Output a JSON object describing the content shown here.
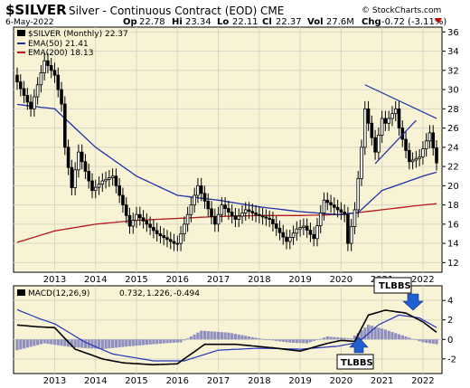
{
  "header": {
    "symbol": "$SILVER",
    "description": "Silver - Continuous Contract (EOD)",
    "exchange": "CME",
    "copyright": "© StockCharts.com",
    "date": "6-May-2022",
    "op_label": "Op",
    "op": "22.78",
    "hi_label": "Hi",
    "hi": "23.34",
    "lo_label": "Lo",
    "lo": "22.11",
    "cl_label": "Cl",
    "cl": "22.37",
    "vol_label": "Vol",
    "vol": "27.6M",
    "chg_label": "Chg",
    "chg": "-0.72 (-3.11%)",
    "chg_color": "#cc0000"
  },
  "legend": {
    "price": "$SILVER (Monthly) 22.37",
    "ema50": "EMA(50) 21.41",
    "ema200": "EMA(200) 18.13"
  },
  "macd": {
    "label_prefix": "MACD(12,26,9)",
    "v1": "0.732,",
    "v2": "1.226,",
    "v3": "-0.494"
  },
  "colors": {
    "panel_bg": "#f7f3d4",
    "ema50": "#1f2fa6",
    "ema200": "#b3191c",
    "trendline": "#1f2fa6",
    "candle": "#000000",
    "histogram": "#8f8fc0",
    "macd_line": "#000000",
    "signal_line": "#2233bb",
    "arrow": "#1f5fcf"
  },
  "callouts": {
    "top": "TLBBS",
    "bottom": "TLBBS"
  },
  "chart_data": [
    {
      "type": "candlestick",
      "title": "$SILVER Silver - Continuous Contract (EOD) CME",
      "period": "Monthly",
      "ylim": [
        11,
        36.5
      ],
      "y_ticks": [
        12,
        14,
        16,
        18,
        20,
        22,
        24,
        26,
        28,
        30,
        32,
        34,
        36
      ],
      "x_ticks": [
        "2013",
        "2014",
        "2015",
        "2016",
        "2017",
        "2018",
        "2019",
        "2020",
        "2021",
        "2022"
      ],
      "series": [
        {
          "name": "$SILVER (Monthly)",
          "anchors": [
            [
              "2012-01",
              31.5
            ],
            [
              "2012-06",
              28.0
            ],
            [
              "2012-10",
              33.0
            ],
            [
              "2013-01",
              31.5
            ],
            [
              "2013-03",
              28.5
            ],
            [
              "2013-04",
              24.0
            ],
            [
              "2013-06",
              19.8
            ],
            [
              "2013-08",
              23.5
            ],
            [
              "2013-12",
              19.5
            ],
            [
              "2014-03",
              20.5
            ],
            [
              "2014-06",
              21.0
            ],
            [
              "2014-09",
              18.0
            ],
            [
              "2014-11",
              15.8
            ],
            [
              "2015-01",
              17.0
            ],
            [
              "2015-07",
              15.0
            ],
            [
              "2015-12",
              14.0
            ],
            [
              "2016-01",
              14.0
            ],
            [
              "2016-07",
              20.0
            ],
            [
              "2016-12",
              16.0
            ],
            [
              "2017-02",
              18.0
            ],
            [
              "2017-06",
              16.5
            ],
            [
              "2017-09",
              17.5
            ],
            [
              "2017-12",
              17.0
            ],
            [
              "2018-04",
              16.5
            ],
            [
              "2018-09",
              14.2
            ],
            [
              "2018-12",
              15.5
            ],
            [
              "2019-02",
              15.8
            ],
            [
              "2019-05",
              14.5
            ],
            [
              "2019-08",
              18.5
            ],
            [
              "2019-12",
              17.5
            ],
            [
              "2020-02",
              17.0
            ],
            [
              "2020-03",
              14.0
            ],
            [
              "2020-05",
              17.5
            ],
            [
              "2020-07",
              24.0
            ],
            [
              "2020-08",
              28.0
            ],
            [
              "2020-11",
              23.5
            ],
            [
              "2021-01",
              27.0
            ],
            [
              "2021-02",
              26.5
            ],
            [
              "2021-05",
              28.0
            ],
            [
              "2021-06",
              26.0
            ],
            [
              "2021-09",
              22.5
            ],
            [
              "2021-12",
              23.0
            ],
            [
              "2022-03",
              25.5
            ],
            [
              "2022-05",
              22.37
            ]
          ]
        },
        {
          "name": "EMA(50)",
          "anchors": [
            [
              "2012-01",
              28.5
            ],
            [
              "2013-01",
              28.0
            ],
            [
              "2014-01",
              24.0
            ],
            [
              "2015-01",
              21.0
            ],
            [
              "2016-01",
              19.0
            ],
            [
              "2017-01",
              18.5
            ],
            [
              "2018-01",
              17.8
            ],
            [
              "2019-01",
              17.3
            ],
            [
              "2019-12",
              17.0
            ],
            [
              "2020-06",
              17.2
            ],
            [
              "2021-01",
              19.5
            ],
            [
              "2022-01",
              21.0
            ],
            [
              "2022-05",
              21.41
            ]
          ]
        },
        {
          "name": "EMA(200)",
          "anchors": [
            [
              "2012-01",
              14.0
            ],
            [
              "2013-01",
              15.3
            ],
            [
              "2014-01",
              16.0
            ],
            [
              "2015-01",
              16.4
            ],
            [
              "2016-01",
              16.6
            ],
            [
              "2017-01",
              16.8
            ],
            [
              "2018-01",
              16.9
            ],
            [
              "2019-01",
              16.9
            ],
            [
              "2020-01",
              17.0
            ],
            [
              "2021-01",
              17.5
            ],
            [
              "2022-01",
              18.0
            ],
            [
              "2022-05",
              18.13
            ]
          ]
        }
      ],
      "trendlines": [
        {
          "from": [
            "2020-08",
            30.5
          ],
          "to": [
            "2022-05",
            27.0
          ]
        },
        {
          "from": [
            "2020-11",
            22.3
          ],
          "to": [
            "2021-11",
            26.8
          ]
        }
      ]
    },
    {
      "type": "macd",
      "title": "MACD(12,26,9) 0.732, 1.226, -0.494",
      "ylim": [
        -3.5,
        5.5
      ],
      "y_ticks": [
        -2,
        0,
        2,
        4
      ],
      "x_ticks": [
        "2013",
        "2014",
        "2015",
        "2016",
        "2017",
        "2018",
        "2019",
        "2020",
        "2021",
        "2022"
      ],
      "series": [
        {
          "name": "MACD",
          "anchors": [
            [
              "2012-01",
              1.5
            ],
            [
              "2012-08",
              1.3
            ],
            [
              "2013-01",
              1.2
            ],
            [
              "2013-07",
              -1.0
            ],
            [
              "2014-03",
              -2.0
            ],
            [
              "2014-09",
              -2.4
            ],
            [
              "2015-06",
              -2.6
            ],
            [
              "2016-01",
              -2.5
            ],
            [
              "2016-09",
              -0.5
            ],
            [
              "2017-06",
              -0.5
            ],
            [
              "2018-06",
              -0.9
            ],
            [
              "2019-01",
              -1.2
            ],
            [
              "2019-09",
              -0.4
            ],
            [
              "2020-01",
              -0.1
            ],
            [
              "2020-05",
              -0.2
            ],
            [
              "2020-09",
              2.5
            ],
            [
              "2021-02",
              3.0
            ],
            [
              "2021-08",
              2.7
            ],
            [
              "2022-01",
              1.8
            ],
            [
              "2022-05",
              0.732
            ]
          ]
        },
        {
          "name": "Signal",
          "anchors": [
            [
              "2012-01",
              3.2
            ],
            [
              "2012-08",
              2.2
            ],
            [
              "2013-01",
              1.6
            ],
            [
              "2013-10",
              -0.3
            ],
            [
              "2014-06",
              -1.5
            ],
            [
              "2015-06",
              -2.2
            ],
            [
              "2016-03",
              -2.2
            ],
            [
              "2017-01",
              -1.1
            ],
            [
              "2018-01",
              -0.9
            ],
            [
              "2019-01",
              -1.0
            ],
            [
              "2019-12",
              -0.7
            ],
            [
              "2020-06",
              -0.3
            ],
            [
              "2020-12",
              1.5
            ],
            [
              "2021-06",
              2.5
            ],
            [
              "2021-12",
              2.2
            ],
            [
              "2022-05",
              1.226
            ]
          ]
        },
        {
          "name": "Histogram",
          "anchors": [
            [
              "2012-01",
              -1.2
            ],
            [
              "2012-10",
              -0.4
            ],
            [
              "2013-06",
              -0.8
            ],
            [
              "2014-03",
              -1.0
            ],
            [
              "2014-11",
              -0.7
            ],
            [
              "2015-09",
              -0.4
            ],
            [
              "2016-02",
              -0.3
            ],
            [
              "2016-08",
              0.9
            ],
            [
              "2017-04",
              0.7
            ],
            [
              "2018-01",
              0.1
            ],
            [
              "2018-09",
              -0.3
            ],
            [
              "2019-03",
              -0.4
            ],
            [
              "2019-09",
              0.3
            ],
            [
              "2020-04",
              0.1
            ],
            [
              "2020-09",
              1.5
            ],
            [
              "2021-02",
              1.0
            ],
            [
              "2021-08",
              0.3
            ],
            [
              "2022-01",
              -0.3
            ],
            [
              "2022-05",
              -0.494
            ]
          ]
        }
      ]
    }
  ]
}
